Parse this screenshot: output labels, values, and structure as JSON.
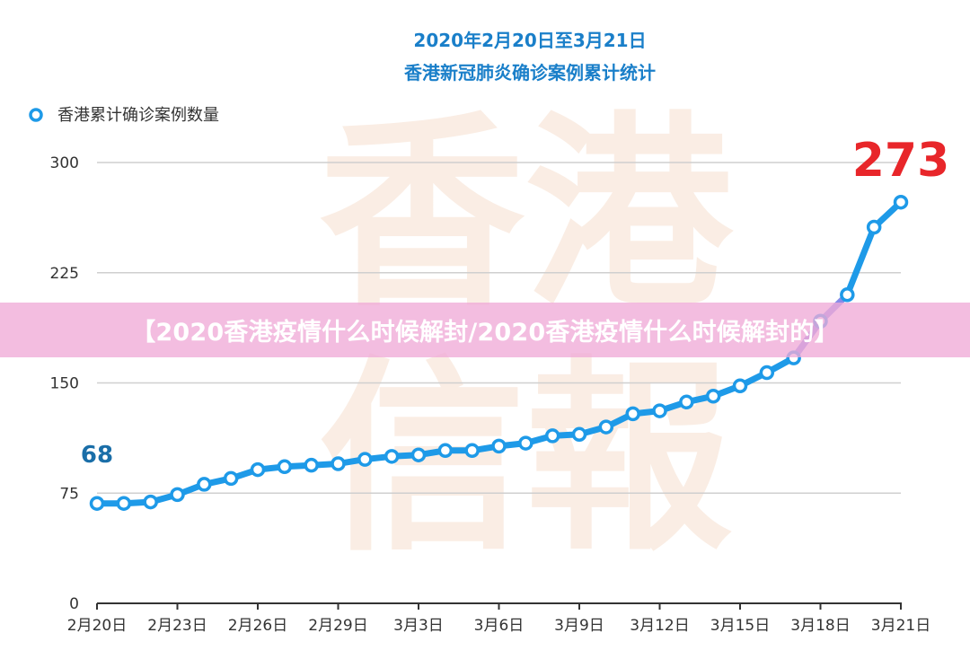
{
  "overlay": {
    "banner": "【2020香港疫情什么时候解封/2020香港疫情什么时候解封的】",
    "watermark": "香港 信報"
  },
  "colors": {
    "line": "#1e9ae8",
    "line_highlight": "#9a88e8",
    "title": "#1a7fc9",
    "start_label": "#1a6ea8",
    "end_label": "#e8262a"
  },
  "chart_data": {
    "type": "line",
    "title": "2020年2月20日至3月21日",
    "subtitle": "香港新冠肺炎确诊案例累计统计",
    "legend": "香港累计确诊案例数量",
    "legend_position": "top-left",
    "ylim": [
      0,
      300
    ],
    "yticks": [
      "0",
      "75",
      "150",
      "225",
      "300"
    ],
    "grid": true,
    "xticks": [
      "2月20日",
      "2月23日",
      "2月26日",
      "2月29日",
      "3月3日",
      "3月6日",
      "3月9日",
      "3月12日",
      "3月15日",
      "3月18日",
      "3月21日"
    ],
    "x": [
      "2月20日",
      "2月21日",
      "2月22日",
      "2月23日",
      "2月24日",
      "2月25日",
      "2月26日",
      "2月27日",
      "2月28日",
      "2月29日",
      "3月1日",
      "3月2日",
      "3月3日",
      "3月4日",
      "3月5日",
      "3月6日",
      "3月7日",
      "3月8日",
      "3月9日",
      "3月10日",
      "3月11日",
      "3月12日",
      "3月13日",
      "3月14日",
      "3月15日",
      "3月16日",
      "3月17日",
      "3月18日",
      "3月19日",
      "3月20日",
      "3月21日"
    ],
    "series": [
      {
        "name": "香港累计确诊案例数量",
        "values": [
          68,
          68,
          69,
          74,
          81,
          85,
          91,
          93,
          94,
          95,
          98,
          100,
          101,
          104,
          104,
          107,
          109,
          114,
          115,
          120,
          129,
          131,
          137,
          141,
          148,
          157,
          167,
          192,
          210,
          256,
          273
        ]
      }
    ],
    "annotations": {
      "start": "68",
      "end": "273"
    }
  }
}
